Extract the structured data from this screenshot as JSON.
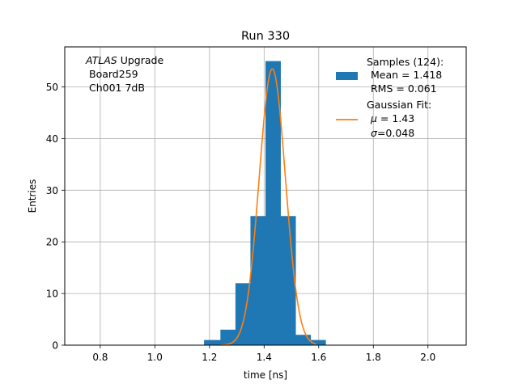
{
  "chart_data": {
    "type": "bar",
    "title": "Run 330",
    "xlabel": "time [ns]",
    "ylabel": "Entries",
    "xlim": [
      0.67,
      2.14
    ],
    "ylim": [
      0,
      57.75
    ],
    "xticks": [
      0.8,
      1.0,
      1.2,
      1.4,
      1.6,
      1.8,
      2.0
    ],
    "xtick_labels": [
      "0.8",
      "1.0",
      "1.2",
      "1.4",
      "1.6",
      "1.8",
      "2.0"
    ],
    "yticks": [
      0,
      10,
      20,
      30,
      40,
      50
    ],
    "ytick_labels": [
      "0",
      "10",
      "20",
      "30",
      "40",
      "50"
    ],
    "grid": true,
    "annotation": {
      "line1_italic": "ATLAS",
      "line1_rest": " Upgrade",
      "line2": "Board259",
      "line3": "Ch001 7dB"
    },
    "histogram": {
      "name": "Samples (124):",
      "color": "#1f77b4",
      "bins": [
        {
          "x0": 1.18,
          "x1": 1.24,
          "value": 1
        },
        {
          "x0": 1.24,
          "x1": 1.295,
          "value": 3
        },
        {
          "x0": 1.295,
          "x1": 1.35,
          "value": 12
        },
        {
          "x0": 1.35,
          "x1": 1.405,
          "value": 25
        },
        {
          "x0": 1.405,
          "x1": 1.46,
          "value": 55
        },
        {
          "x0": 1.46,
          "x1": 1.515,
          "value": 25
        },
        {
          "x0": 1.515,
          "x1": 1.57,
          "value": 2
        },
        {
          "x0": 1.57,
          "x1": 1.625,
          "value": 1
        }
      ]
    },
    "fit": {
      "name": "Gaussian Fit:",
      "color": "#ff7f0e",
      "mu": 1.43,
      "sigma": 0.048,
      "amplitude": 53.5,
      "x_range": [
        1.24,
        1.59
      ]
    },
    "legend": {
      "position": "top-right",
      "samples_title": "Samples (124):",
      "samples_mean": "Mean = 1.418",
      "samples_rms": "RMS = 0.061",
      "fit_title": "Gaussian Fit:",
      "fit_mu_symbol": "μ",
      "fit_mu_value": " = 1.43",
      "fit_sigma_symbol": "σ",
      "fit_sigma_value": "=0.048"
    }
  }
}
